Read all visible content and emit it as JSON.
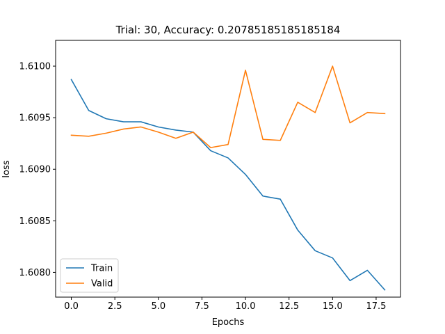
{
  "chart_data": {
    "type": "line",
    "title": "Trial: 30, Accuracy: 0.20785185185185184",
    "xlabel": "Epochs",
    "ylabel": "loss",
    "xlim": [
      -0.9,
      18.9
    ],
    "ylim": [
      1.60776,
      1.61025
    ],
    "x_ticks": [
      0.0,
      2.5,
      5.0,
      7.5,
      10.0,
      12.5,
      15.0,
      17.5
    ],
    "x_tick_labels": [
      "0.0",
      "2.5",
      "5.0",
      "7.5",
      "10.0",
      "12.5",
      "15.0",
      "17.5"
    ],
    "y_ticks": [
      1.608,
      1.6085,
      1.609,
      1.6095,
      1.61
    ],
    "y_tick_labels": [
      "1.6080",
      "1.6085",
      "1.6090",
      "1.6095",
      "1.6100"
    ],
    "grid": false,
    "legend_position": "lower-left",
    "x": [
      0,
      1,
      2,
      3,
      4,
      5,
      6,
      7,
      8,
      9,
      10,
      11,
      12,
      13,
      14,
      15,
      16,
      17,
      18
    ],
    "series": [
      {
        "name": "Train",
        "color": "#1f77b4",
        "values": [
          1.60987,
          1.60957,
          1.60949,
          1.60946,
          1.60946,
          1.60941,
          1.60938,
          1.60936,
          1.60918,
          1.60911,
          1.60895,
          1.60874,
          1.60871,
          1.60841,
          1.60821,
          1.60814,
          1.60792,
          1.60802,
          1.60783
        ]
      },
      {
        "name": "Valid",
        "color": "#ff7f0e",
        "values": [
          1.60933,
          1.60932,
          1.60935,
          1.60939,
          1.60941,
          1.60936,
          1.6093,
          1.60936,
          1.60921,
          1.60924,
          1.60996,
          1.60929,
          1.60928,
          1.60965,
          1.60955,
          1.61,
          1.60945,
          1.60955,
          1.60954
        ]
      }
    ]
  }
}
